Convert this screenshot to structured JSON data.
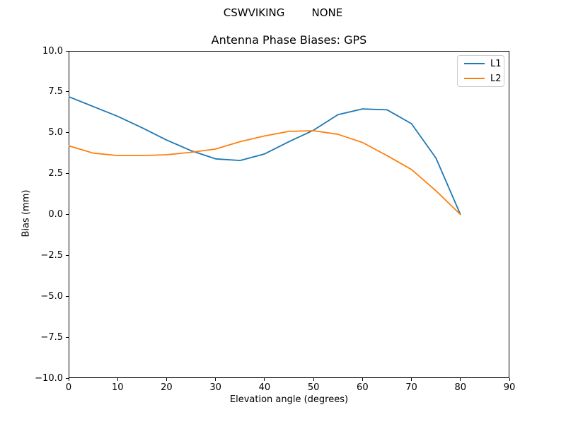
{
  "header": {
    "suptitle": "CSWVIKING        NONE"
  },
  "chart_data": {
    "type": "line",
    "title": "Antenna Phase Biases: GPS",
    "xlabel": "Elevation angle (degrees)",
    "ylabel": "Bias (mm)",
    "xlim": [
      0,
      90
    ],
    "ylim": [
      -10,
      10
    ],
    "grid": false,
    "legend_position": "upper right",
    "x": [
      0,
      5,
      10,
      15,
      20,
      25,
      30,
      35,
      40,
      45,
      50,
      55,
      60,
      65,
      70,
      75,
      80
    ],
    "series": [
      {
        "name": "L1",
        "color": "#1f77b4",
        "values": [
          7.2,
          6.6,
          6.0,
          5.3,
          4.55,
          3.9,
          3.4,
          3.3,
          3.7,
          4.45,
          5.15,
          6.1,
          6.45,
          6.4,
          5.55,
          3.45,
          0.0
        ]
      },
      {
        "name": "L2",
        "color": "#ff7f0e",
        "values": [
          4.2,
          3.75,
          3.6,
          3.6,
          3.65,
          3.8,
          4.0,
          4.45,
          4.8,
          5.08,
          5.12,
          4.9,
          4.4,
          3.6,
          2.75,
          1.45,
          0.0
        ]
      }
    ],
    "xticks": [
      0,
      10,
      20,
      30,
      40,
      50,
      60,
      70,
      80,
      90
    ],
    "xtick_labels": [
      "0",
      "10",
      "20",
      "30",
      "40",
      "50",
      "60",
      "70",
      "80",
      "90"
    ],
    "yticks": [
      10,
      7.5,
      5,
      2.5,
      0,
      -2.5,
      -5,
      -7.5,
      -10
    ],
    "ytick_labels": [
      "10.0",
      "7.5",
      "5.0",
      "2.5",
      "0.0",
      "−2.5",
      "−5.0",
      "−7.5",
      "−10.0"
    ]
  }
}
